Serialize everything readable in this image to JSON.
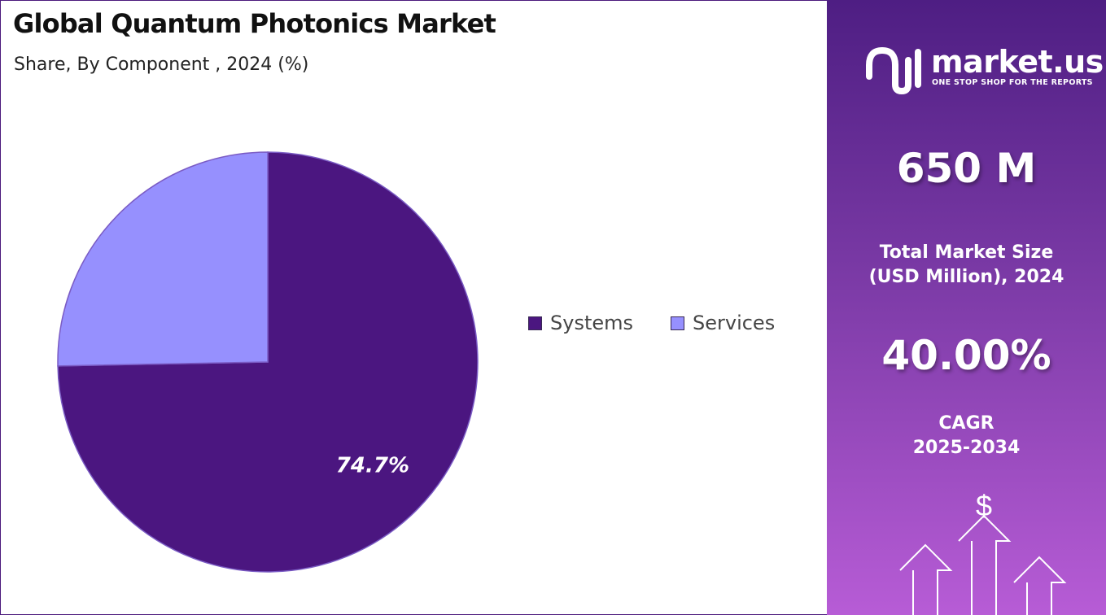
{
  "header": {
    "title": "Global Quantum Photonics Market",
    "subtitle": "Share, By Component , 2024 (%)"
  },
  "chart_data": {
    "type": "pie",
    "categories": [
      "Systems",
      "Services"
    ],
    "values": [
      74.7,
      25.3
    ],
    "data_labels": [
      "74.7%",
      ""
    ],
    "colors": [
      "#4b1680",
      "#9690fe"
    ],
    "legend_position": "right"
  },
  "sidebar": {
    "logo": {
      "name": "market.us",
      "tagline": "ONE STOP SHOP FOR THE REPORTS"
    },
    "market_size_value": "650 M",
    "market_size_label_line1": "Total Market Size",
    "market_size_label_line2": "(USD Million), 2024",
    "cagr_value": "40.00%",
    "cagr_label_line1": "CAGR",
    "cagr_label_line2": "2025-2034",
    "currency_symbol": "$"
  }
}
